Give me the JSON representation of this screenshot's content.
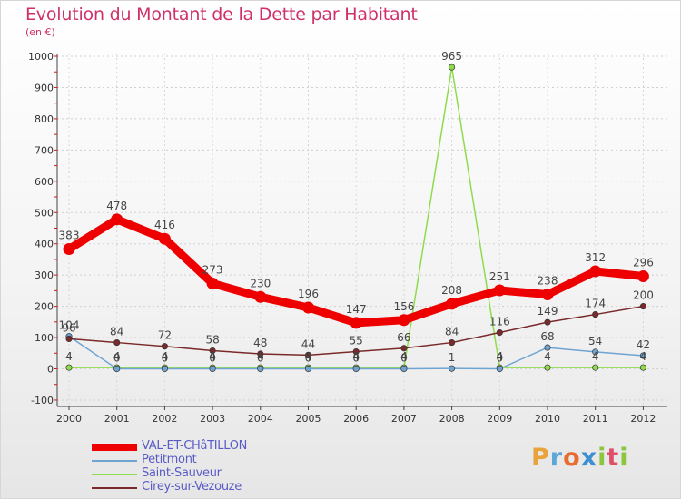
{
  "title": "Evolution du Montant de la Dette par Habitant",
  "subtitle": "(en €)",
  "logo_text": "Proxiti",
  "chart_data": {
    "type": "line",
    "title": "Evolution du Montant de la Dette par Habitant",
    "subtitle": "(en €)",
    "xlabel": "",
    "ylabel": "",
    "x": [
      "2000",
      "2001",
      "2002",
      "2003",
      "2004",
      "2005",
      "2006",
      "2007",
      "2008",
      "2009",
      "2010",
      "2011",
      "2012"
    ],
    "ylim": [
      -100,
      1000
    ],
    "yticks": [
      "-100",
      "0",
      "100",
      "200",
      "300",
      "400",
      "500",
      "600",
      "700",
      "800",
      "900",
      "1000"
    ],
    "grid": "horizontal",
    "legend_position": "bottom-left",
    "series": [
      {
        "name": "VAL-ET-CHâTILLON",
        "color": "#ee0000",
        "values": [
          383,
          478,
          416,
          273,
          230,
          196,
          147,
          156,
          208,
          251,
          238,
          312,
          296
        ],
        "labels": [
          "383",
          "478",
          "416",
          "273",
          "230",
          "196",
          "147",
          "156",
          "208",
          "251",
          "238",
          "312",
          "296"
        ]
      },
      {
        "name": "Petitmont",
        "color": "#6fa4d2",
        "values": [
          104,
          0,
          0,
          0,
          0,
          0,
          0,
          0,
          1,
          0,
          68,
          54,
          42
        ],
        "labels": [
          "104",
          "0",
          "0",
          "0",
          "0",
          "0",
          "0",
          "0",
          "1",
          "0",
          "68",
          "54",
          "42"
        ]
      },
      {
        "name": "Saint-Sauveur",
        "color": "#8edc4c",
        "values": [
          4,
          4,
          4,
          4,
          4,
          4,
          4,
          4,
          965,
          4,
          4,
          4,
          4
        ],
        "labels": [
          "4",
          "4",
          "4",
          "4",
          "4",
          "4",
          "4",
          "4",
          "965",
          "4",
          "4",
          "4",
          "4"
        ]
      },
      {
        "name": "Cirey-sur-Vezouze",
        "color": "#7a2a2a",
        "values": [
          96,
          84,
          72,
          58,
          48,
          44,
          55,
          66,
          84,
          116,
          149,
          174,
          200
        ],
        "labels": [
          "96",
          "84",
          "72",
          "58",
          "48",
          "44",
          "55",
          "66",
          "84",
          "116",
          "149",
          "174",
          "200"
        ]
      }
    ]
  }
}
